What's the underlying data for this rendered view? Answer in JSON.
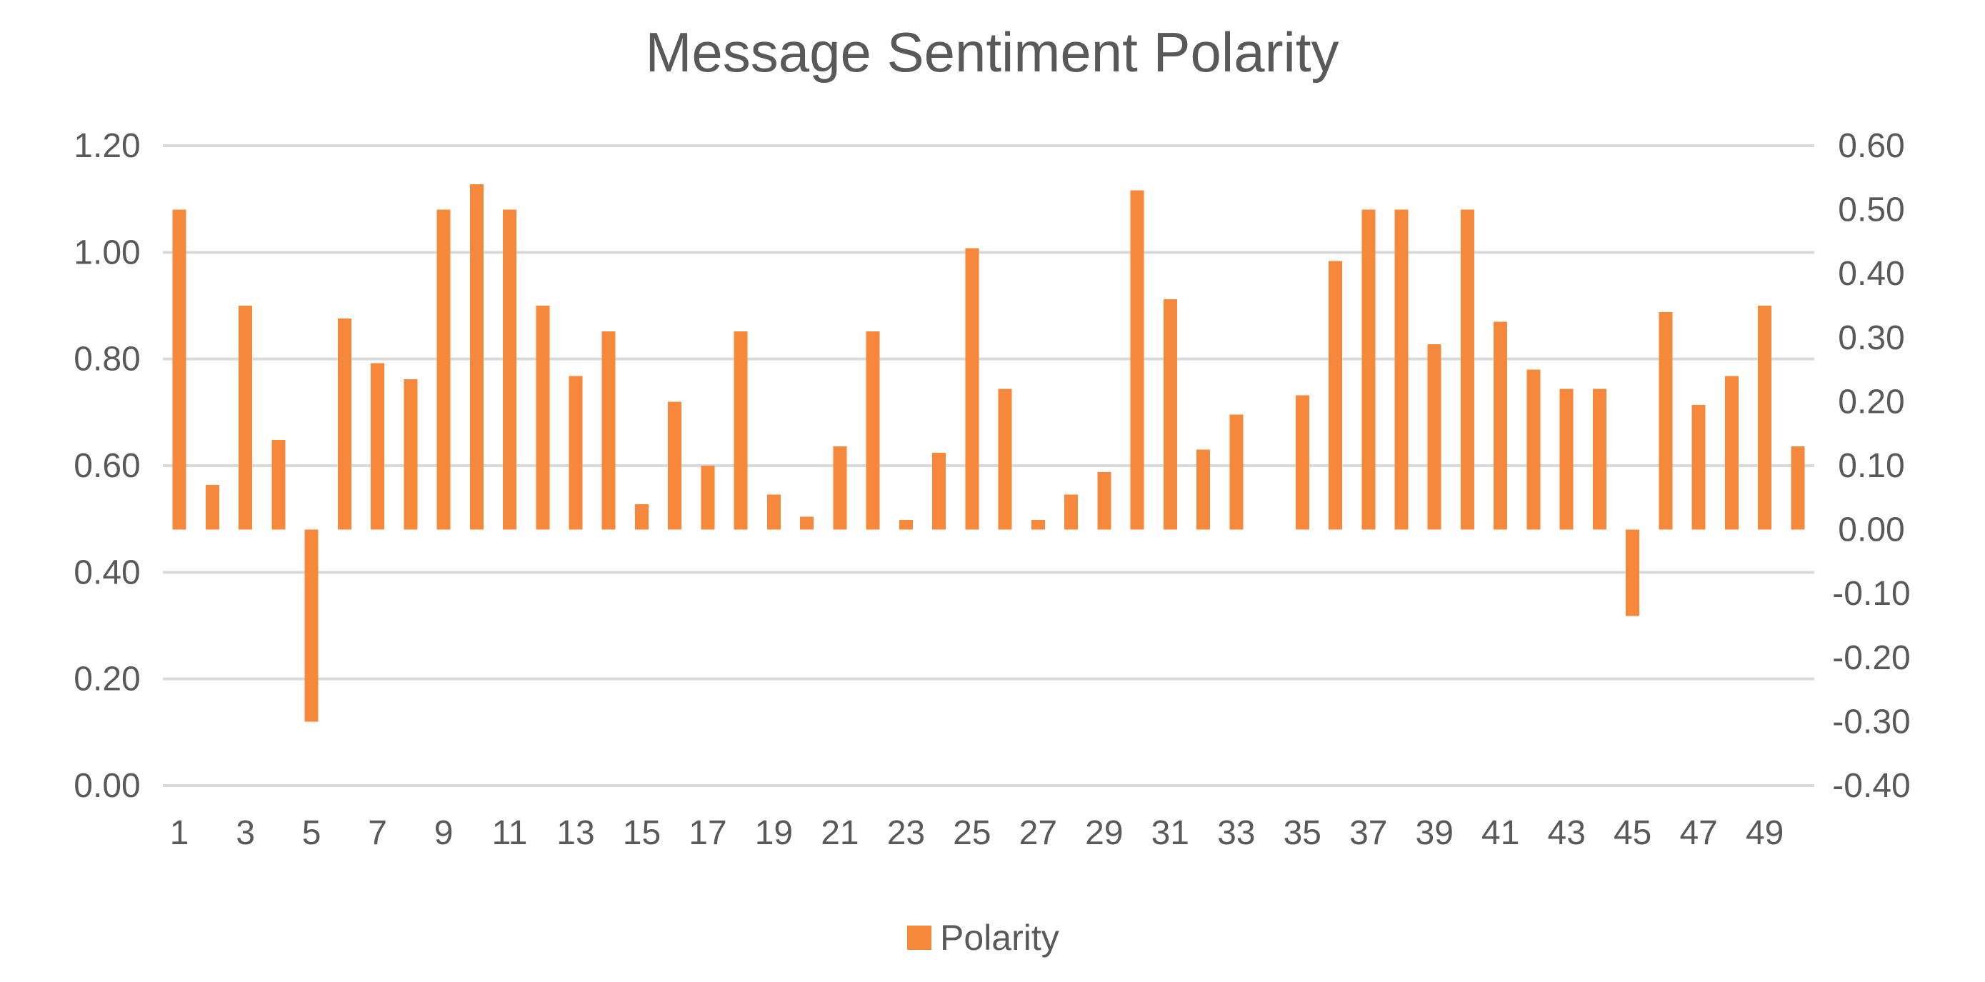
{
  "chart_data": {
    "type": "bar",
    "title": "Message Sentiment Polarity",
    "color": "#f5883a",
    "grid_color": "#d9d9d9",
    "text_color": "#595959",
    "grid": true,
    "legend": {
      "entries": [
        "Polarity"
      ],
      "placement": "bottom-center"
    },
    "primary_axis": {
      "side": "left",
      "range": [
        0.0,
        1.2
      ],
      "ticks": [
        "0.00",
        "0.20",
        "0.40",
        "0.60",
        "0.80",
        "1.00",
        "1.20"
      ]
    },
    "secondary_axis": {
      "side": "right",
      "range": [
        -0.4,
        0.6
      ],
      "ticks": [
        "-0.40",
        "-0.30",
        "-0.20",
        "-0.10",
        "0.00",
        "0.10",
        "0.20",
        "0.30",
        "0.40",
        "0.50",
        "0.60"
      ]
    },
    "x_tick_labels": [
      "1",
      "3",
      "5",
      "7",
      "9",
      "11",
      "13",
      "15",
      "17",
      "19",
      "21",
      "23",
      "25",
      "27",
      "29",
      "31",
      "33",
      "35",
      "37",
      "39",
      "41",
      "43",
      "45",
      "47",
      "49"
    ],
    "categories": [
      1,
      2,
      3,
      4,
      5,
      6,
      7,
      8,
      9,
      10,
      11,
      12,
      13,
      14,
      15,
      16,
      17,
      18,
      19,
      20,
      21,
      22,
      23,
      24,
      25,
      26,
      27,
      28,
      29,
      30,
      31,
      32,
      33,
      34,
      35,
      36,
      37,
      38,
      39,
      40,
      41,
      42,
      43,
      44,
      45,
      46,
      47,
      48,
      49,
      50
    ],
    "series": [
      {
        "name": "Polarity",
        "axis": "secondary",
        "values": [
          0.5,
          0.07,
          0.35,
          0.14,
          -0.3,
          0.33,
          0.26,
          0.235,
          0.5,
          0.54,
          0.5,
          0.35,
          0.24,
          0.31,
          0.04,
          0.2,
          0.1,
          0.31,
          0.055,
          0.02,
          0.13,
          0.31,
          0.015,
          0.12,
          0.44,
          0.22,
          0.015,
          0.055,
          0.09,
          0.53,
          0.36,
          0.125,
          0.18,
          0.0,
          0.21,
          0.42,
          0.5,
          0.5,
          0.29,
          0.5,
          0.325,
          0.25,
          0.22,
          0.22,
          -0.135,
          0.34,
          0.195,
          0.24,
          0.35,
          0.13
        ]
      }
    ]
  }
}
